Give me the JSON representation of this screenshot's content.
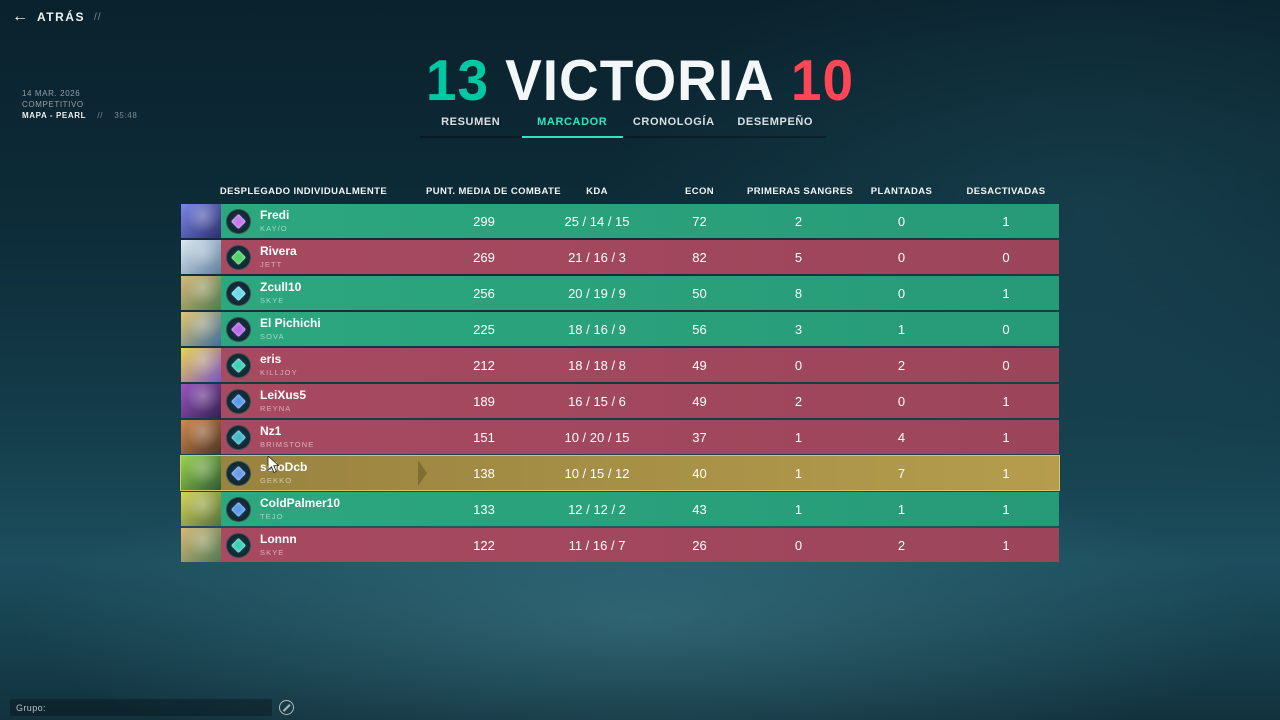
{
  "back": {
    "label": "ATRÁS",
    "slashes": "//"
  },
  "match_info": {
    "date": "14 MAR. 2026",
    "mode": "COMPETITIVO",
    "map": "MAPA - PEARL",
    "separator": "//",
    "duration": "35:48"
  },
  "score": {
    "team": "13",
    "label": "VICTORIA",
    "enemy": "10",
    "team_color": "#00c8a2",
    "enemy_color": "#ff4655"
  },
  "tabs": [
    {
      "label": "RESUMEN",
      "active": false
    },
    {
      "label": "MARCADOR",
      "active": true
    },
    {
      "label": "CRONOLOGÍA",
      "active": false
    },
    {
      "label": "DESEMPEÑO",
      "active": false
    }
  ],
  "table": {
    "headers": [
      "DESPLEGADO INDIVIDUALMENTE",
      "PUNT. MEDIA DE COMBATE",
      "KDA",
      "ECON",
      "PRIMERAS SANGRES",
      "PLANTADAS",
      "DESACTIVADAS"
    ],
    "rows": [
      {
        "name": "Fredi",
        "agent": "KAY/O",
        "team": "ally",
        "local": false,
        "acs": "299",
        "kda": "25 / 14 / 15",
        "econ": "72",
        "first_bloods": "2",
        "plants": "0",
        "defuses": "1",
        "portrait": [
          "#7b86e8",
          "#2c2f6b"
        ],
        "rank_color": "#c07ae8"
      },
      {
        "name": "Rivera",
        "agent": "JETT",
        "team": "enemy",
        "local": false,
        "acs": "269",
        "kda": "21 / 16 / 3",
        "econ": "82",
        "first_bloods": "5",
        "plants": "0",
        "defuses": "0",
        "portrait": [
          "#dce9f2",
          "#5f7f9e"
        ],
        "rank_color": "#52d06a"
      },
      {
        "name": "Zcull10",
        "agent": "SKYE",
        "team": "ally",
        "local": false,
        "acs": "256",
        "kda": "20 / 19 / 9",
        "econ": "50",
        "first_bloods": "8",
        "plants": "0",
        "defuses": "1",
        "portrait": [
          "#d8b878",
          "#4f7a52"
        ],
        "rank_color": "#6ad8e8"
      },
      {
        "name": "El Pichichi",
        "agent": "SOVA",
        "team": "ally",
        "local": false,
        "acs": "225",
        "kda": "18 / 16 / 9",
        "econ": "56",
        "first_bloods": "3",
        "plants": "1",
        "defuses": "0",
        "portrait": [
          "#e3c670",
          "#3e6e9e"
        ],
        "rank_color": "#b668e8"
      },
      {
        "name": "eris",
        "agent": "KILLJOY",
        "team": "enemy",
        "local": false,
        "acs": "212",
        "kda": "18 / 18 / 8",
        "econ": "49",
        "first_bloods": "0",
        "plants": "2",
        "defuses": "0",
        "portrait": [
          "#ecd44e",
          "#7a55c8"
        ],
        "rank_color": "#3ecdb4"
      },
      {
        "name": "LeiXus5",
        "agent": "REYNA",
        "team": "enemy",
        "local": false,
        "acs": "189",
        "kda": "16 / 15 / 6",
        "econ": "49",
        "first_bloods": "2",
        "plants": "0",
        "defuses": "1",
        "portrait": [
          "#9a56c0",
          "#33204f"
        ],
        "rank_color": "#5a9ae8"
      },
      {
        "name": "Nz1",
        "agent": "BRIMSTONE",
        "team": "enemy",
        "local": false,
        "acs": "151",
        "kda": "10 / 20 / 15",
        "econ": "37",
        "first_bloods": "1",
        "plants": "4",
        "defuses": "1",
        "portrait": [
          "#d08a4e",
          "#4e3423"
        ],
        "rank_color": "#45b8c8"
      },
      {
        "name": "soloDcb",
        "agent": "GEKKO",
        "team": "ally",
        "local": true,
        "acs": "138",
        "kda": "10 / 15 / 12",
        "econ": "40",
        "first_bloods": "1",
        "plants": "7",
        "defuses": "1",
        "portrait": [
          "#9ad44e",
          "#2f5a33"
        ],
        "rank_color": "#6a9ae8"
      },
      {
        "name": "ColdPalmer10",
        "agent": "TEJO",
        "team": "ally",
        "local": false,
        "acs": "133",
        "kda": "12 / 12 / 2",
        "econ": "43",
        "first_bloods": "1",
        "plants": "1",
        "defuses": "1",
        "portrait": [
          "#d4d45a",
          "#55703a"
        ],
        "rank_color": "#5a9ae8"
      },
      {
        "name": "Lonnn",
        "agent": "SKYE",
        "team": "enemy",
        "local": false,
        "acs": "122",
        "kda": "11 / 16 / 7",
        "econ": "26",
        "first_bloods": "0",
        "plants": "2",
        "defuses": "1",
        "portrait": [
          "#d8b878",
          "#4f7a52"
        ],
        "rank_color": "#3ecdb4"
      }
    ]
  },
  "party": {
    "label": "Grupo:"
  },
  "colors": {
    "ally_row": "#2ca87f",
    "enemy_row": "#a84a61",
    "local_row": "#ab954a",
    "accent_teal": "#2ee6c0",
    "accent_red": "#ff4655"
  }
}
